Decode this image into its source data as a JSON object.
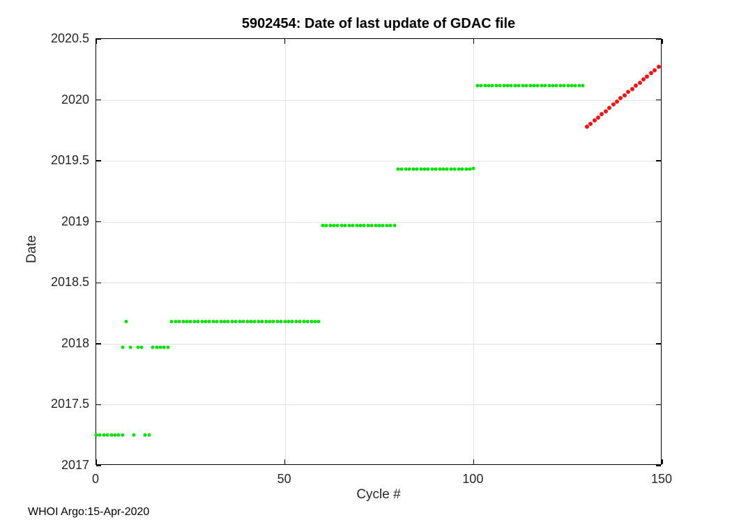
{
  "footer": {
    "credit": "WHOI Argo:15-Apr-2020"
  },
  "chart_data": {
    "type": "scatter",
    "title": "5902454: Date of last update of GDAC file",
    "xlabel": "Cycle #",
    "ylabel": "Date",
    "xlim": [
      0,
      150
    ],
    "ylim": [
      2017,
      2020.5
    ],
    "xticks": {
      "values": [
        0,
        50,
        100,
        150
      ],
      "labels": [
        "0",
        "50",
        "100",
        "150"
      ]
    },
    "yticks": {
      "values": [
        2017,
        2017.5,
        2018,
        2018.5,
        2019,
        2019.5,
        2020,
        2020.5
      ],
      "labels": [
        "2017",
        "2017.5",
        "2018",
        "2018.5",
        "2019",
        "2019.5",
        "2020",
        "2020.5"
      ]
    },
    "grid": true,
    "legend": "none",
    "colors": {
      "green": "#00e400",
      "red": "#ff1010",
      "grid": "#e3e3e3",
      "axis": "#000000",
      "text": "#262626"
    },
    "series": [
      {
        "name": "gdac-update-date-green",
        "color_key": "green",
        "marker_px": 5,
        "runs": [
          {
            "start": 0,
            "end": 7,
            "date": 2017.25
          },
          {
            "start": 10,
            "end": 10,
            "date": 2017.25
          },
          {
            "start": 13,
            "end": 14,
            "date": 2017.25
          },
          {
            "start": 7,
            "end": 7,
            "date": 2017.97
          },
          {
            "start": 9,
            "end": 9,
            "date": 2017.97
          },
          {
            "start": 11,
            "end": 12,
            "date": 2017.97
          },
          {
            "start": 15,
            "end": 19,
            "date": 2017.97
          },
          {
            "start": 8,
            "end": 8,
            "date": 2018.18
          },
          {
            "start": 20,
            "end": 59,
            "date": 2018.18
          },
          {
            "start": 60,
            "end": 79,
            "date": 2018.97
          },
          {
            "start": 80,
            "end": 99,
            "date": 2019.43
          },
          {
            "start": 100,
            "end": 100,
            "date": 2019.44
          },
          {
            "start": 101,
            "end": 129,
            "date": 2020.12
          }
        ]
      },
      {
        "name": "recent-update-date-red",
        "color_key": "red",
        "marker_px": 6,
        "runs": [
          {
            "start": 130,
            "end": 149,
            "date_start": 2019.78,
            "date_end": 2020.27
          }
        ]
      }
    ]
  }
}
